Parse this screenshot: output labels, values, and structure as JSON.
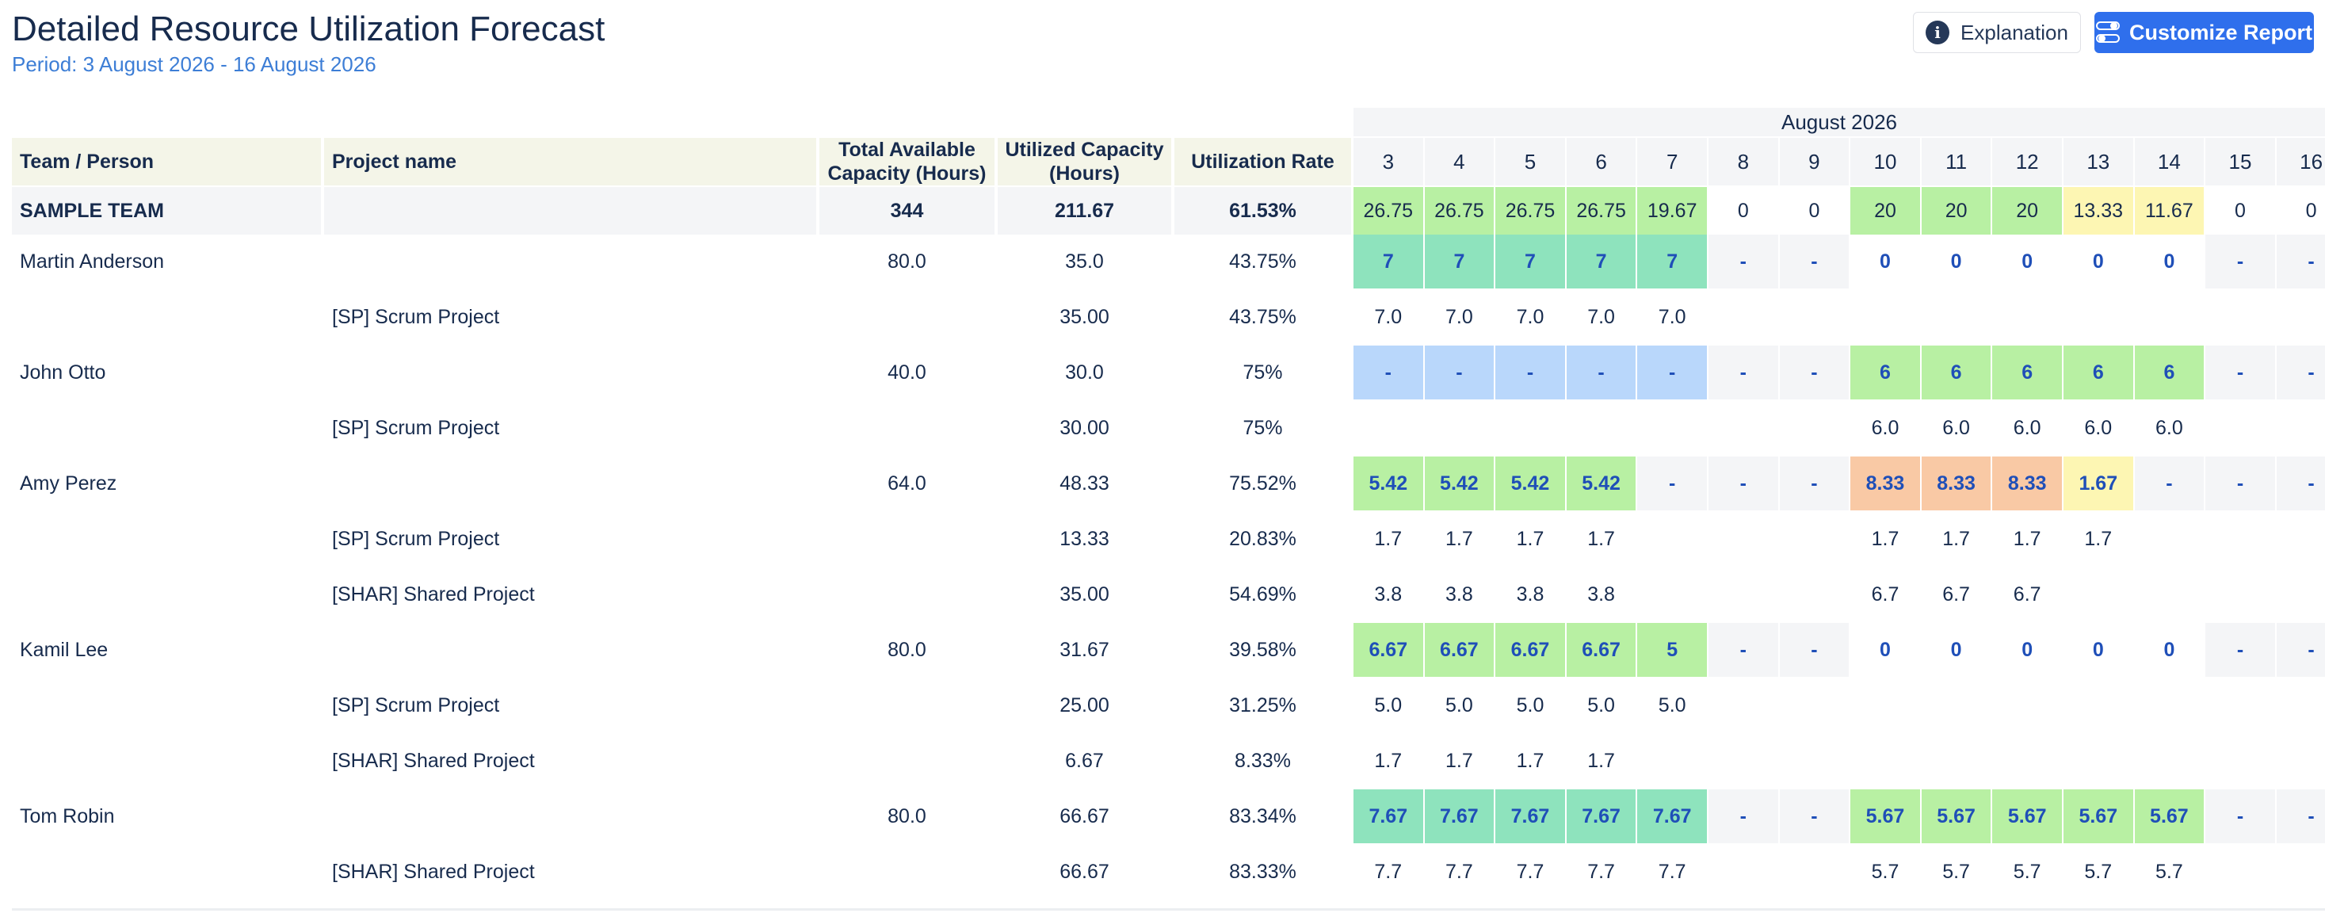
{
  "header": {
    "title": "Detailed Resource Utilization Forecast",
    "period": "Period: 3 August 2026 - 16 August 2026",
    "explanation_label": "Explanation",
    "customize_label": "Customize Report"
  },
  "table": {
    "month_label": "August 2026",
    "columns": [
      "Team / Person",
      "Project name",
      "Total Available Capacity (Hours)",
      "Utilized Capacity (Hours)",
      "Utilization Rate"
    ],
    "days": [
      "3",
      "4",
      "5",
      "6",
      "7",
      "8",
      "9",
      "10",
      "11",
      "12",
      "13",
      "14",
      "15",
      "16"
    ],
    "colors": {
      "green": "#b8f0a3",
      "teal": "#8ee3bd",
      "blue": "#b9d7fb",
      "yellow": "#fdf6b3",
      "orange": "#f9c9a5",
      "gray": "#f4f5f7"
    },
    "rows": [
      {
        "kind": "team",
        "name": "SAMPLE TEAM",
        "project": "",
        "total": "344",
        "utilized": "211.67",
        "rate": "61.53%",
        "days": [
          "26.75",
          "26.75",
          "26.75",
          "26.75",
          "19.67",
          "0",
          "0",
          "20",
          "20",
          "20",
          "13.33",
          "11.67",
          "0",
          "0"
        ],
        "bg": [
          "green",
          "green",
          "green",
          "green",
          "green",
          "",
          "",
          "green",
          "green",
          "green",
          "yellow",
          "yellow",
          "",
          ""
        ]
      },
      {
        "kind": "person",
        "name": "Martin Anderson",
        "project": "",
        "total": "80.0",
        "utilized": "35.0",
        "rate": "43.75%",
        "days": [
          "7",
          "7",
          "7",
          "7",
          "7",
          "-",
          "-",
          "0",
          "0",
          "0",
          "0",
          "0",
          "-",
          "-"
        ],
        "bg": [
          "teal",
          "teal",
          "teal",
          "teal",
          "teal",
          "gray",
          "gray",
          "",
          "",
          "",
          "",
          "",
          "gray",
          "gray"
        ]
      },
      {
        "kind": "project",
        "name": "",
        "project": "[SP] Scrum Project",
        "total": "",
        "utilized": "35.00",
        "rate": "43.75%",
        "days": [
          "7.0",
          "7.0",
          "7.0",
          "7.0",
          "7.0",
          "",
          "",
          "",
          "",
          "",
          "",
          "",
          "",
          ""
        ]
      },
      {
        "kind": "person",
        "name": "John Otto",
        "project": "",
        "total": "40.0",
        "utilized": "30.0",
        "rate": "75%",
        "days": [
          "-",
          "-",
          "-",
          "-",
          "-",
          "-",
          "-",
          "6",
          "6",
          "6",
          "6",
          "6",
          "-",
          "-"
        ],
        "bg": [
          "blue",
          "blue",
          "blue",
          "blue",
          "blue",
          "gray",
          "gray",
          "green",
          "green",
          "green",
          "green",
          "green",
          "gray",
          "gray"
        ]
      },
      {
        "kind": "project",
        "name": "",
        "project": "[SP] Scrum Project",
        "total": "",
        "utilized": "30.00",
        "rate": "75%",
        "days": [
          "",
          "",
          "",
          "",
          "",
          "",
          "",
          "6.0",
          "6.0",
          "6.0",
          "6.0",
          "6.0",
          "",
          ""
        ]
      },
      {
        "kind": "person",
        "name": "Amy Perez",
        "project": "",
        "total": "64.0",
        "utilized": "48.33",
        "rate": "75.52%",
        "days": [
          "5.42",
          "5.42",
          "5.42",
          "5.42",
          "-",
          "-",
          "-",
          "8.33",
          "8.33",
          "8.33",
          "1.67",
          "-",
          "-",
          "-"
        ],
        "bg": [
          "green",
          "green",
          "green",
          "green",
          "gray",
          "gray",
          "gray",
          "orange",
          "orange",
          "orange",
          "yellow",
          "gray",
          "gray",
          "gray"
        ]
      },
      {
        "kind": "project",
        "name": "",
        "project": "[SP] Scrum Project",
        "total": "",
        "utilized": "13.33",
        "rate": "20.83%",
        "days": [
          "1.7",
          "1.7",
          "1.7",
          "1.7",
          "",
          "",
          "",
          "1.7",
          "1.7",
          "1.7",
          "1.7",
          "",
          "",
          ""
        ]
      },
      {
        "kind": "project",
        "name": "",
        "project": "[SHAR] Shared Project",
        "total": "",
        "utilized": "35.00",
        "rate": "54.69%",
        "days": [
          "3.8",
          "3.8",
          "3.8",
          "3.8",
          "",
          "",
          "",
          "6.7",
          "6.7",
          "6.7",
          "",
          "",
          "",
          ""
        ]
      },
      {
        "kind": "person",
        "name": "Kamil Lee",
        "project": "",
        "total": "80.0",
        "utilized": "31.67",
        "rate": "39.58%",
        "days": [
          "6.67",
          "6.67",
          "6.67",
          "6.67",
          "5",
          "-",
          "-",
          "0",
          "0",
          "0",
          "0",
          "0",
          "-",
          "-"
        ],
        "bg": [
          "green",
          "green",
          "green",
          "green",
          "green",
          "gray",
          "gray",
          "",
          "",
          "",
          "",
          "",
          "gray",
          "gray"
        ]
      },
      {
        "kind": "project",
        "name": "",
        "project": "[SP] Scrum Project",
        "total": "",
        "utilized": "25.00",
        "rate": "31.25%",
        "days": [
          "5.0",
          "5.0",
          "5.0",
          "5.0",
          "5.0",
          "",
          "",
          "",
          "",
          "",
          "",
          "",
          "",
          ""
        ]
      },
      {
        "kind": "project",
        "name": "",
        "project": "[SHAR] Shared Project",
        "total": "",
        "utilized": "6.67",
        "rate": "8.33%",
        "days": [
          "1.7",
          "1.7",
          "1.7",
          "1.7",
          "",
          "",
          "",
          "",
          "",
          "",
          "",
          "",
          "",
          ""
        ]
      },
      {
        "kind": "person",
        "name": "Tom Robin",
        "project": "",
        "total": "80.0",
        "utilized": "66.67",
        "rate": "83.34%",
        "days": [
          "7.67",
          "7.67",
          "7.67",
          "7.67",
          "7.67",
          "-",
          "-",
          "5.67",
          "5.67",
          "5.67",
          "5.67",
          "5.67",
          "-",
          "-"
        ],
        "bg": [
          "teal",
          "teal",
          "teal",
          "teal",
          "teal",
          "gray",
          "gray",
          "green",
          "green",
          "green",
          "green",
          "green",
          "gray",
          "gray"
        ]
      },
      {
        "kind": "project",
        "name": "",
        "project": "[SHAR] Shared Project",
        "total": "",
        "utilized": "66.67",
        "rate": "83.33%",
        "days": [
          "7.7",
          "7.7",
          "7.7",
          "7.7",
          "7.7",
          "",
          "",
          "5.7",
          "5.7",
          "5.7",
          "5.7",
          "5.7",
          "",
          ""
        ]
      }
    ]
  }
}
